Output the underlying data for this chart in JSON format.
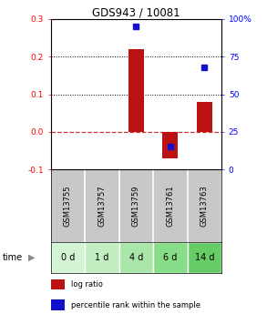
{
  "title": "GDS943 / 10081",
  "samples": [
    "GSM13755",
    "GSM13757",
    "GSM13759",
    "GSM13761",
    "GSM13763"
  ],
  "time_labels": [
    "0 d",
    "1 d",
    "4 d",
    "6 d",
    "14 d"
  ],
  "log_ratios": [
    0.0,
    0.0,
    0.22,
    -0.07,
    0.08
  ],
  "percentile_ranks": [
    null,
    null,
    95.0,
    15.0,
    68.0
  ],
  "ylim_left": [
    -0.1,
    0.3
  ],
  "ylim_right": [
    0,
    100
  ],
  "yticks_left": [
    -0.1,
    0.0,
    0.1,
    0.2,
    0.3
  ],
  "yticks_right": [
    0,
    25,
    50,
    75,
    100
  ],
  "ytick_labels_right": [
    "0",
    "25",
    "50",
    "75",
    "100%"
  ],
  "bar_color": "#bb1111",
  "point_color": "#1111cc",
  "zero_line_color": "#cc3333",
  "dotted_line_color": "#000000",
  "bg_plot": "#ffffff",
  "bg_gsm": "#c8c8c8",
  "bg_time_colors": [
    "#d4f5d4",
    "#c2eec2",
    "#aae6aa",
    "#88dd88",
    "#66cc66"
  ],
  "grid_color": "#aaaaaa",
  "legend_bar_color": "#bb1111",
  "legend_point_color": "#1111cc",
  "legend_bar_label": "log ratio",
  "legend_point_label": "percentile rank within the sample",
  "time_label": "time",
  "figsize": [
    2.93,
    3.45
  ],
  "dpi": 100
}
